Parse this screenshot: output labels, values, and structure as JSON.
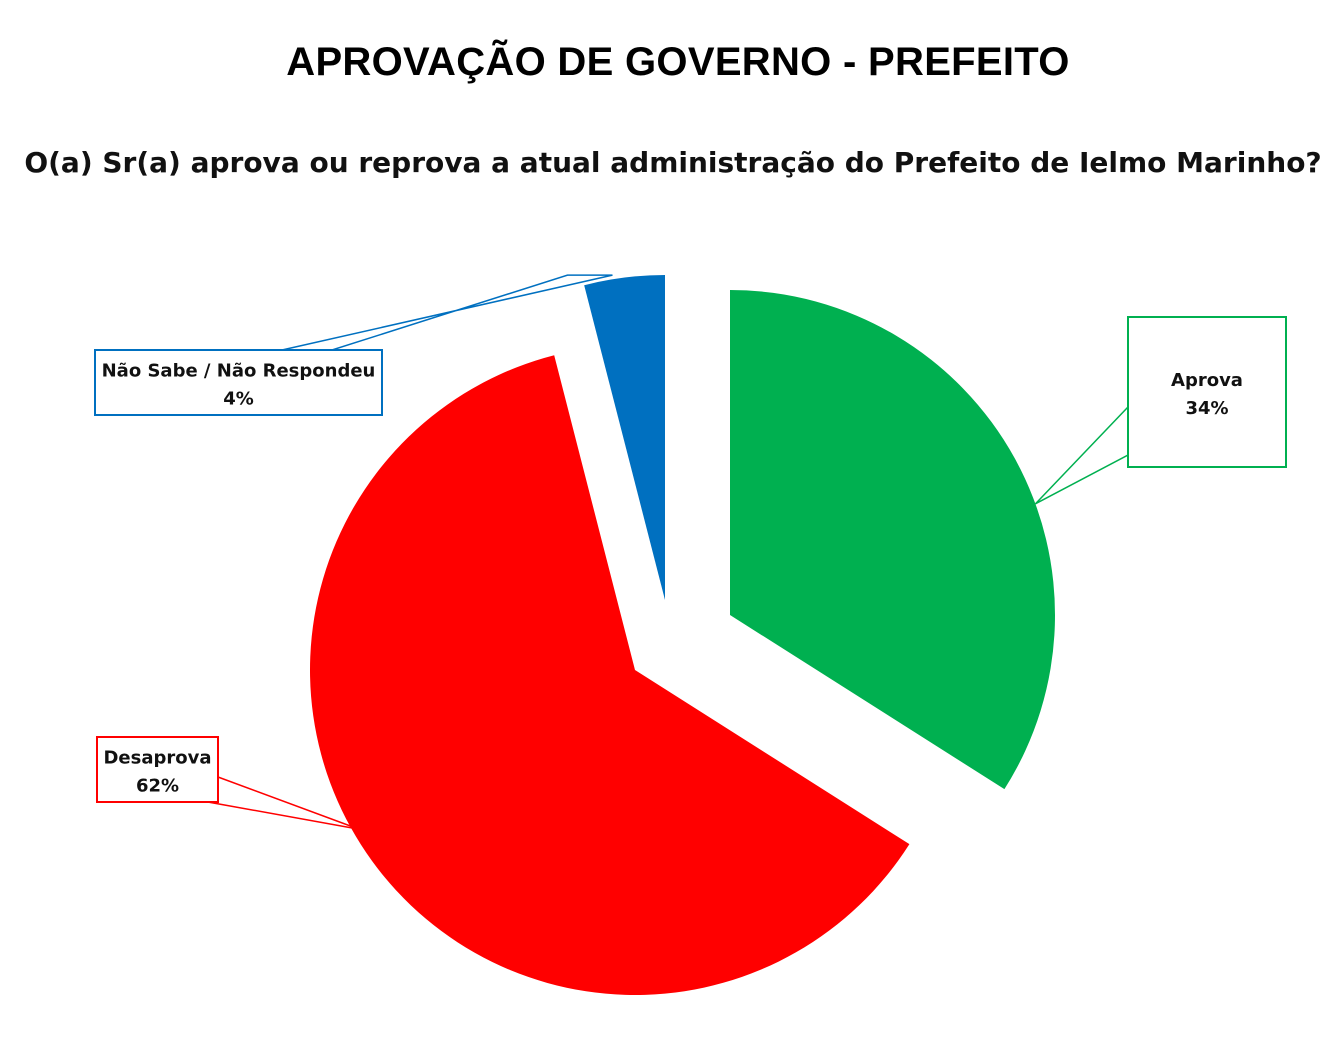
{
  "title": "APROVAÇÃO DE GOVERNO - PREFEITO",
  "subtitle": "O(a) Sr(a) aprova ou reprova a atual administração do Prefeito de Ielmo Marinho?",
  "chart_data": {
    "type": "pie",
    "slices": [
      {
        "label": "Aprova",
        "value": 34,
        "value_label": "34%",
        "color": "#00B050"
      },
      {
        "label": "Desaprova",
        "value": 62,
        "value_label": "62%",
        "color": "#FF0000"
      },
      {
        "label": "Não Sabe / Não Respondeu",
        "value": 4,
        "value_label": "4%",
        "color": "#0070C0"
      }
    ],
    "exploded": true,
    "legend": "none"
  }
}
